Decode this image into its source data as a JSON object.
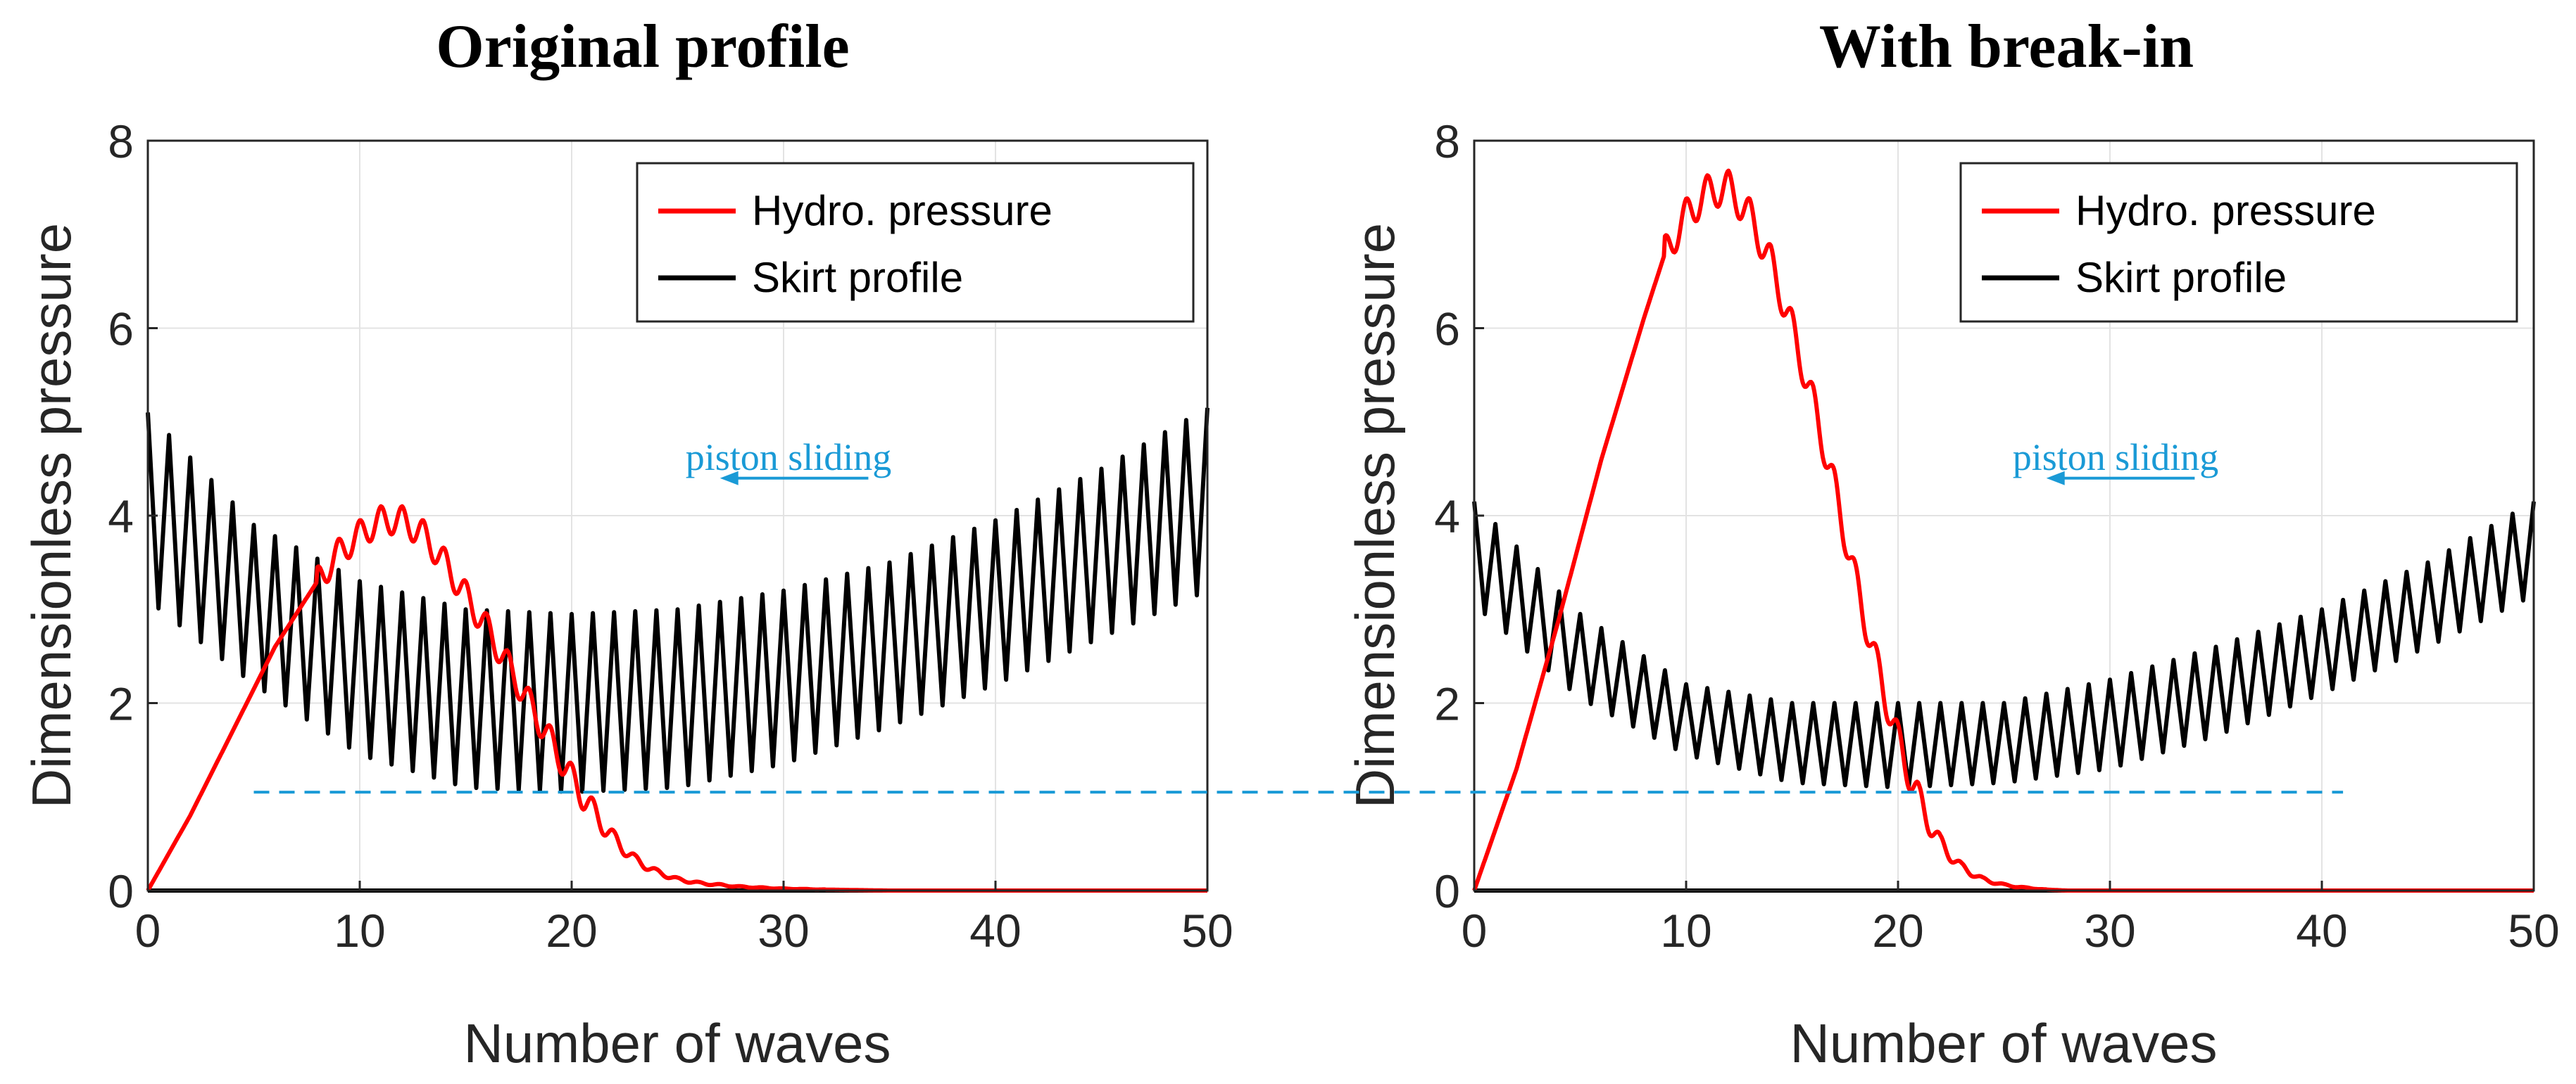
{
  "chart_data": [
    {
      "type": "line",
      "title": "Original profile",
      "xlabel": "Number of waves",
      "ylabel": "Dimensionless pressure",
      "xlim": [
        0,
        50
      ],
      "ylim": [
        0,
        8
      ],
      "xticks": [
        "0",
        "10",
        "20",
        "30",
        "40",
        "50"
      ],
      "yticks": [
        "0",
        "2",
        "4",
        "6",
        "8"
      ],
      "grid": true,
      "legend": {
        "placement": "top-right",
        "entries": [
          "Hydro. pressure",
          "Skirt profile"
        ]
      },
      "annotation": {
        "text": "piston sliding",
        "arrow_from_x": 34,
        "arrow_to_x": 27,
        "y": 4.4
      },
      "series": [
        {
          "name": "Hydro. pressure",
          "color": "#ff0000",
          "x": [
            0,
            2,
            4,
            6,
            8,
            9,
            10,
            11,
            12,
            13,
            14,
            15,
            16,
            17,
            18,
            19,
            20,
            21,
            22,
            23,
            24,
            25,
            26,
            28,
            30,
            32,
            35,
            50
          ],
          "values": [
            0,
            0.8,
            1.7,
            2.6,
            3.3,
            3.6,
            3.8,
            3.95,
            3.95,
            3.8,
            3.5,
            3.15,
            2.8,
            2.4,
            2.0,
            1.6,
            1.2,
            0.85,
            0.55,
            0.33,
            0.2,
            0.12,
            0.08,
            0.04,
            0.02,
            0.01,
            0,
            0
          ],
          "ripple_amplitude": 0.15,
          "ripple_waves_from": 8
        },
        {
          "name": "Skirt profile",
          "color": "#000000",
          "waves": 50,
          "upper_envelope": {
            "x": [
              0,
              5,
              10,
              15,
              20,
              25,
              30,
              35,
              40,
              45,
              50
            ],
            "values": [
              5.1,
              3.9,
              3.3,
              3.0,
              2.95,
              3.0,
              3.2,
              3.5,
              3.95,
              4.5,
              5.15
            ]
          },
          "lower_envelope": {
            "x": [
              0,
              5,
              10,
              15,
              20,
              25,
              30,
              35,
              40,
              45,
              50
            ],
            "values": [
              3.1,
              2.2,
              1.45,
              1.1,
              1.05,
              1.1,
              1.35,
              1.75,
              2.2,
              2.7,
              3.2
            ]
          }
        }
      ]
    },
    {
      "type": "line",
      "title": "With break-in",
      "xlabel": "Number of waves",
      "ylabel": "Dimensionless pressure",
      "xlim": [
        0,
        50
      ],
      "ylim": [
        0,
        8
      ],
      "xticks": [
        "0",
        "10",
        "20",
        "30",
        "40",
        "50"
      ],
      "yticks": [
        "0",
        "2",
        "4",
        "6",
        "8"
      ],
      "grid": true,
      "legend": {
        "placement": "top-right",
        "entries": [
          "Hydro. pressure",
          "Skirt profile"
        ]
      },
      "annotation": {
        "text": "piston sliding",
        "arrow_from_x": 34,
        "arrow_to_x": 27,
        "y": 4.4
      },
      "series": [
        {
          "name": "Hydro. pressure",
          "color": "#ff0000",
          "x": [
            0,
            2,
            4,
            6,
            8,
            9,
            10,
            11,
            12,
            13,
            14,
            15,
            16,
            17,
            18,
            19,
            20,
            21,
            22,
            23,
            24,
            25,
            26,
            27,
            28,
            29,
            50
          ],
          "values": [
            0,
            1.3,
            2.9,
            4.6,
            6.1,
            6.8,
            7.2,
            7.45,
            7.5,
            7.2,
            6.7,
            6.0,
            5.2,
            4.3,
            3.3,
            2.4,
            1.6,
            0.95,
            0.5,
            0.25,
            0.12,
            0.06,
            0.03,
            0.01,
            0,
            0,
            0
          ],
          "ripple_amplitude": 0.18,
          "ripple_waves_from": 9
        },
        {
          "name": "Skirt profile",
          "color": "#000000",
          "waves": 50,
          "upper_envelope": {
            "x": [
              0,
              5,
              10,
              15,
              20,
              25,
              30,
              35,
              40,
              45,
              50
            ],
            "values": [
              4.15,
              2.95,
              2.2,
              2.0,
              2.0,
              2.0,
              2.25,
              2.6,
              3.0,
              3.5,
              4.15
            ]
          },
          "lower_envelope": {
            "x": [
              0,
              5,
              10,
              15,
              20,
              25,
              30,
              35,
              40,
              45,
              50
            ],
            "values": [
              3.05,
              2.05,
              1.45,
              1.15,
              1.1,
              1.15,
              1.3,
              1.65,
              2.1,
              2.6,
              3.15
            ]
          }
        }
      ]
    }
  ],
  "reference_line": {
    "y": 1.05,
    "x_start_panel1": 5,
    "x_end_panel2": 41,
    "color": "#1a9ad6"
  }
}
